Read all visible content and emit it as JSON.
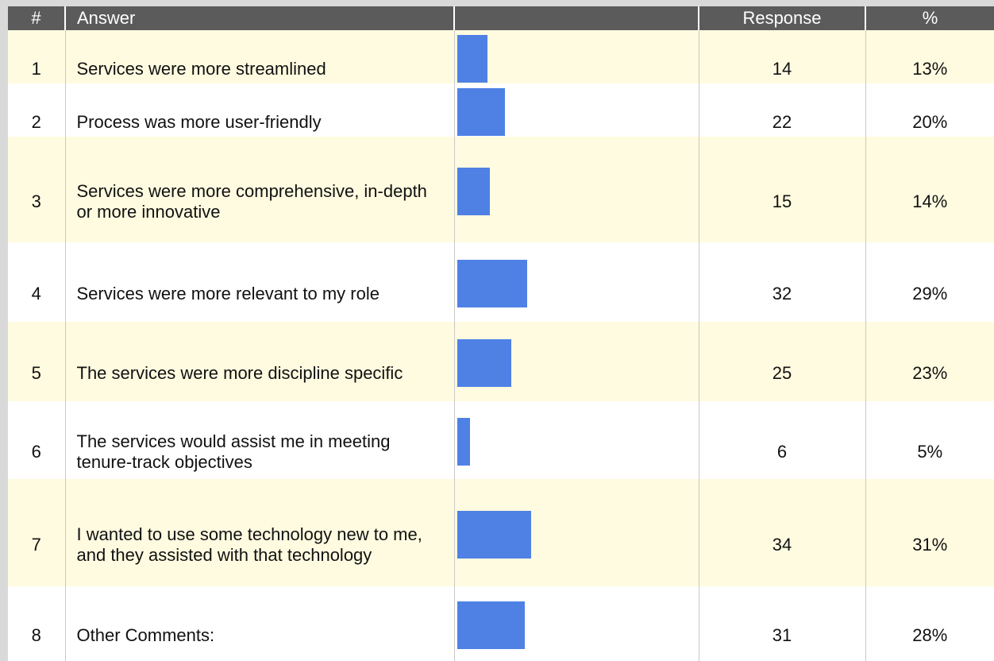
{
  "header": {
    "number": "#",
    "answer": "Answer",
    "response": "Response",
    "percent": "%"
  },
  "rows": [
    {
      "number": 1,
      "answer": "Services were more streamlined",
      "response": 14,
      "percent": "13%"
    },
    {
      "number": 2,
      "answer": "Process was more user-friendly",
      "response": 22,
      "percent": "20%"
    },
    {
      "number": 3,
      "answer": "Services were more comprehensive, in-depth or more innovative",
      "response": 15,
      "percent": "14%"
    },
    {
      "number": 4,
      "answer": "Services were more relevant to my role",
      "response": 32,
      "percent": "29%"
    },
    {
      "number": 5,
      "answer": "The services were more discipline specific",
      "response": 25,
      "percent": "23%"
    },
    {
      "number": 6,
      "answer": "The services would assist me in meeting tenure-track objectives",
      "response": 6,
      "percent": "5%"
    },
    {
      "number": 7,
      "answer": "I wanted to use some technology new to me, and they assisted with that technology",
      "response": 34,
      "percent": "31%"
    },
    {
      "number": 8,
      "answer": "Other Comments:",
      "response": 31,
      "percent": "28%"
    }
  ]
}
